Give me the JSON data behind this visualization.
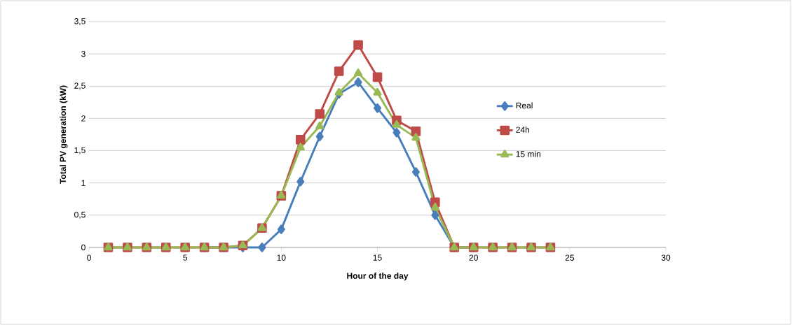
{
  "chart_data": {
    "type": "line",
    "xlabel": "Hour of the day",
    "ylabel": "Total PV generation (kW)",
    "x": [
      1,
      2,
      3,
      4,
      5,
      6,
      7,
      8,
      9,
      10,
      11,
      12,
      13,
      14,
      15,
      16,
      17,
      18,
      19,
      20,
      21,
      22,
      23,
      24
    ],
    "series": [
      {
        "name": "Real",
        "color": "#4a7ebb",
        "marker": "diamond",
        "values": [
          null,
          null,
          null,
          null,
          null,
          0,
          0,
          0,
          0,
          0.28,
          1.02,
          1.72,
          2.38,
          2.56,
          2.16,
          1.78,
          1.17,
          0.5,
          0,
          0,
          null,
          null,
          null,
          null
        ]
      },
      {
        "name": "24h",
        "color": "#be4b48",
        "marker": "square",
        "values": [
          0,
          0,
          0,
          0,
          0,
          0,
          0,
          0.03,
          0.3,
          0.8,
          1.67,
          2.07,
          2.73,
          3.14,
          2.64,
          1.97,
          1.8,
          0.7,
          0,
          0,
          0,
          0,
          0,
          0
        ]
      },
      {
        "name": "15 min",
        "color": "#98b954",
        "marker": "triangle",
        "values": [
          0,
          0,
          0,
          0,
          0,
          0,
          0,
          0.03,
          0.3,
          0.8,
          1.55,
          1.88,
          2.4,
          2.7,
          2.4,
          1.9,
          1.7,
          0.62,
          0,
          0,
          0,
          0,
          0,
          0
        ]
      }
    ],
    "xlim": [
      0,
      30
    ],
    "xticks": [
      0,
      5,
      10,
      15,
      20,
      25,
      30
    ],
    "ylim": [
      0,
      3.5
    ],
    "yticks": [
      0,
      {
        "value": 0.5,
        "label": "0,5"
      },
      1,
      {
        "value": 1.5,
        "label": "1,5"
      },
      2,
      {
        "value": 2.5,
        "label": "2,5"
      },
      3,
      {
        "value": 3.5,
        "label": "3,5"
      }
    ],
    "grid": "y",
    "legend": "right",
    "line_style": "solid"
  }
}
